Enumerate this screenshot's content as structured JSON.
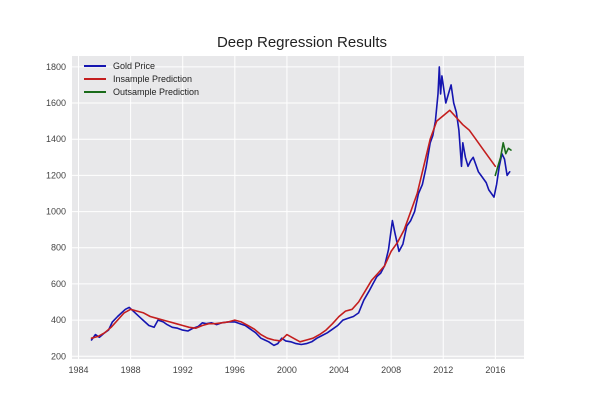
{
  "chart_data": {
    "type": "line",
    "title": "Deep Regression Results",
    "xlabel": "",
    "ylabel": "",
    "xlim": [
      1983.5,
      2018.2
    ],
    "ylim": [
      185,
      1860
    ],
    "x_ticks": [
      1984,
      1988,
      1992,
      1996,
      2000,
      2004,
      2008,
      2012,
      2016
    ],
    "y_ticks": [
      200,
      400,
      600,
      800,
      1000,
      1200,
      1400,
      1600,
      1800
    ],
    "grid": true,
    "legend_position": "top-left",
    "series": [
      {
        "name": "Gold Price",
        "color": "#1515b0",
        "x": [
          1985.0,
          1985.3,
          1985.6,
          1986.0,
          1986.3,
          1986.6,
          1987.0,
          1987.3,
          1987.6,
          1987.9,
          1988.2,
          1988.5,
          1988.8,
          1989.1,
          1989.4,
          1989.8,
          1990.1,
          1990.5,
          1990.8,
          1991.2,
          1991.6,
          1992.0,
          1992.4,
          1992.8,
          1993.2,
          1993.5,
          1993.8,
          1994.2,
          1994.6,
          1995.0,
          1995.5,
          1996.0,
          1996.4,
          1996.8,
          1997.2,
          1997.6,
          1998.0,
          1998.3,
          1998.6,
          1999.0,
          1999.3,
          1999.6,
          1999.9,
          2000.3,
          2000.7,
          2001.1,
          2001.5,
          2001.9,
          2002.3,
          2002.7,
          2003.1,
          2003.5,
          2003.9,
          2004.3,
          2004.7,
          2005.1,
          2005.5,
          2005.9,
          2006.3,
          2006.6,
          2006.9,
          2007.2,
          2007.5,
          2007.8,
          2008.1,
          2008.3,
          2008.6,
          2008.9,
          2009.2,
          2009.5,
          2009.8,
          2010.1,
          2010.4,
          2010.7,
          2011.0,
          2011.2,
          2011.4,
          2011.6,
          2011.7,
          2011.8,
          2011.9,
          2012.0,
          2012.2,
          2012.4,
          2012.6,
          2012.8,
          2013.0,
          2013.2,
          2013.4,
          2013.5,
          2013.7,
          2013.9,
          2014.1,
          2014.3,
          2014.5,
          2014.7,
          2014.9,
          2015.1,
          2015.3,
          2015.5,
          2015.7,
          2015.9,
          2016.1,
          2016.3,
          2016.5,
          2016.7,
          2016.9,
          2017.1
        ],
        "values": [
          290,
          320,
          305,
          330,
          345,
          390,
          420,
          440,
          460,
          470,
          450,
          430,
          410,
          390,
          370,
          360,
          400,
          390,
          375,
          360,
          355,
          345,
          340,
          355,
          365,
          385,
          380,
          385,
          375,
          385,
          390,
          390,
          380,
          370,
          350,
          330,
          300,
          290,
          280,
          260,
          270,
          300,
          285,
          280,
          270,
          265,
          270,
          280,
          300,
          315,
          330,
          350,
          370,
          400,
          410,
          420,
          440,
          510,
          560,
          600,
          640,
          660,
          700,
          790,
          950,
          880,
          780,
          820,
          920,
          950,
          1000,
          1100,
          1150,
          1250,
          1380,
          1420,
          1500,
          1650,
          1800,
          1650,
          1750,
          1700,
          1600,
          1650,
          1700,
          1600,
          1550,
          1450,
          1250,
          1380,
          1300,
          1250,
          1280,
          1300,
          1260,
          1220,
          1200,
          1180,
          1160,
          1120,
          1100,
          1080,
          1150,
          1250,
          1320,
          1290,
          1200,
          1220
        ]
      },
      {
        "name": "Insample Prediction",
        "color": "#c41e1e",
        "x": [
          1985.0,
          1985.5,
          1986.0,
          1986.5,
          1987.0,
          1987.5,
          1988.0,
          1988.5,
          1989.0,
          1989.5,
          1990.0,
          1990.5,
          1991.0,
          1991.5,
          1992.0,
          1992.5,
          1993.0,
          1993.5,
          1994.0,
          1994.5,
          1995.0,
          1995.5,
          1996.0,
          1996.5,
          1997.0,
          1997.5,
          1998.0,
          1998.5,
          1999.0,
          1999.5,
          2000.0,
          2000.5,
          2001.0,
          2001.5,
          2002.0,
          2002.5,
          2003.0,
          2003.5,
          2004.0,
          2004.5,
          2005.0,
          2005.5,
          2006.0,
          2006.5,
          2007.0,
          2007.5,
          2008.0,
          2008.5,
          2009.0,
          2009.5,
          2010.0,
          2010.5,
          2011.0,
          2011.5,
          2012.0,
          2012.5,
          2013.0,
          2013.5,
          2014.0,
          2014.5,
          2015.0,
          2015.5,
          2016.0
        ],
        "values": [
          300,
          310,
          330,
          360,
          400,
          440,
          460,
          450,
          440,
          420,
          410,
          400,
          390,
          380,
          370,
          360,
          355,
          370,
          380,
          380,
          385,
          390,
          400,
          390,
          370,
          350,
          320,
          300,
          290,
          285,
          320,
          300,
          280,
          290,
          300,
          320,
          345,
          380,
          420,
          450,
          460,
          500,
          560,
          620,
          660,
          700,
          780,
          830,
          900,
          1000,
          1100,
          1250,
          1400,
          1500,
          1530,
          1560,
          1520,
          1480,
          1450,
          1400,
          1350,
          1300,
          1250
        ]
      },
      {
        "name": "Outsample Prediction",
        "color": "#1a6b1a",
        "x": [
          2016.0,
          2016.2,
          2016.4,
          2016.6,
          2016.8,
          2017.0,
          2017.2
        ],
        "values": [
          1200,
          1250,
          1300,
          1380,
          1320,
          1350,
          1340
        ]
      }
    ]
  }
}
